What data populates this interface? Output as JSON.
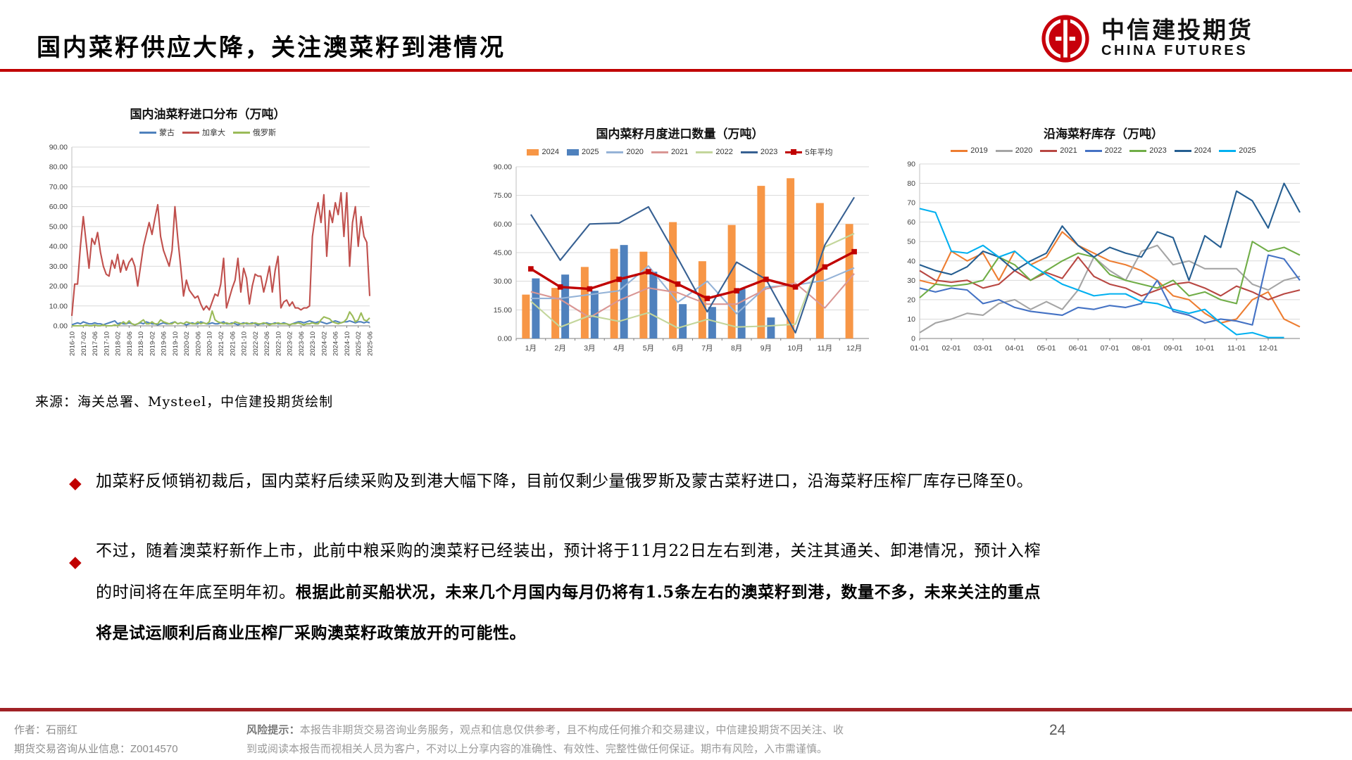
{
  "header": {
    "title": "国内菜籽供应大降，关注澳菜籽到港情况",
    "logo_cn": "中信建投期货",
    "logo_en": "CHINA FUTURES"
  },
  "ui": {
    "bullet_marker": "◆"
  },
  "source_note": "来源：海关总署、Mysteel，中信建投期货绘制",
  "bullets": [
    {
      "text": "加菜籽反倾销初裁后，国内菜籽后续采购及到港大幅下降，目前仅剩少量俄罗斯及蒙古菜籽进口，沿海菜籽压榨厂库存已降至0。"
    },
    {
      "text_normal": "不过，随着澳菜籽新作上市，此前中粮采购的澳菜籽已经装出，预计将于11月22日左右到港，关注其通关、卸港情况，预计入榨的时间将在年底至明年初。",
      "text_bold": "根据此前买船状况，未来几个月国内每月仍将有1.5条左右的澳菜籽到港，数量不多，未来关注的重点将是试运顺利后商业压榨厂采购澳菜籽政策放开的可能性。"
    }
  ],
  "footer": {
    "author_line": "作者：石丽红",
    "license_line": "期货交易咨询从业信息：Z0014570",
    "risk_label": "风险提示：",
    "risk_text": "本报告非期货交易咨询业务服务，观点和信息仅供参考，且不构成任何推介和交易建议，中信建投期货不因关注、收到或阅读本报告而视相关人员为客户，不对以上分享内容的准确性、有效性、完整性做任何保证。期市有风险，入市需谨慎。",
    "page_number": "24"
  },
  "chart_data": [
    {
      "type": "line",
      "title": "国内油菜籽进口分布（万吨）",
      "ylim": [
        0,
        90
      ],
      "ystep": 10,
      "y_decimals": 2,
      "grid": true,
      "legend_position": "top",
      "x_label_rotate": true,
      "tick_every": 4,
      "x_tick_labels": [
        "2016-10",
        "2017-02",
        "2017-06",
        "2017-10",
        "2018-02",
        "2018-06",
        "2018-10",
        "2019-02",
        "2019-06",
        "2019-10",
        "2020-02",
        "2020-06",
        "2020-10",
        "2021-02",
        "2021-06",
        "2021-10",
        "2022-02",
        "2022-06",
        "2022-10",
        "2023-02",
        "2023-06",
        "2023-10",
        "2024-02",
        "2024-06",
        "2024-10",
        "2025-02",
        "2025-06"
      ],
      "series": [
        {
          "name": "蒙古",
          "kind": "line",
          "color": "#4F81BD",
          "values": [
            0.5,
            1,
            1.5,
            1,
            2,
            1.5,
            1,
            1,
            1.5,
            1,
            1,
            0.5,
            1,
            1.5,
            2,
            2.5,
            1,
            1.5,
            1,
            1,
            1.5,
            1,
            0.5,
            1,
            1.5,
            1,
            2,
            1.5,
            1,
            1,
            0.5,
            1,
            1.5,
            1,
            1,
            1.5,
            2,
            1,
            1.5,
            1,
            0.5,
            1,
            1.5,
            1,
            1,
            2,
            1.5,
            1,
            1,
            1.5,
            1,
            1,
            1.5,
            2,
            1,
            1,
            1.5,
            1,
            0.5,
            1,
            1.5,
            1,
            1,
            1.5,
            1,
            0.5,
            1,
            1,
            1.5,
            1,
            1,
            1.5,
            1,
            1,
            1.5,
            1,
            0.5,
            1,
            1.5,
            2,
            2,
            1.5,
            2,
            2.5,
            2,
            1.5,
            2,
            2,
            1.5,
            1,
            1.5,
            2,
            2.5,
            2,
            1.5,
            2,
            2,
            2.5,
            2,
            1.5,
            2,
            2,
            1.5,
            2,
            1.5
          ]
        },
        {
          "name": "加拿大",
          "kind": "line",
          "color": "#C0504D",
          "values": [
            5,
            21,
            21,
            40,
            55,
            42,
            29,
            44,
            41,
            47,
            37,
            30,
            26,
            25,
            33,
            29,
            36,
            27,
            33,
            28,
            32,
            34,
            30,
            20,
            30,
            40,
            46,
            52,
            46,
            54,
            61,
            45,
            38,
            34,
            30,
            38,
            60,
            44,
            30,
            15,
            23,
            18,
            16,
            14,
            15,
            11,
            8,
            10,
            8,
            12,
            16,
            15,
            21,
            34,
            9,
            14,
            19,
            23,
            34,
            17,
            29,
            24,
            11,
            20,
            26,
            25,
            25,
            17,
            23,
            30,
            17,
            28,
            35,
            9,
            12,
            13,
            10,
            12,
            9,
            9,
            8,
            9,
            9,
            10,
            45,
            55,
            62,
            52,
            66,
            35,
            58,
            52,
            62,
            56,
            67,
            45,
            67,
            30,
            52,
            60,
            40,
            55,
            45,
            42,
            15
          ]
        },
        {
          "name": "俄罗斯",
          "kind": "line",
          "color": "#9BBB59",
          "values": [
            0,
            0,
            0,
            0,
            0,
            0.5,
            0,
            0,
            0.5,
            0,
            0,
            0.5,
            0,
            0,
            0,
            0.5,
            0,
            1,
            2,
            1,
            2.5,
            1,
            0.5,
            1,
            2,
            3,
            1,
            1,
            2,
            1,
            1,
            3,
            2,
            1.5,
            1,
            1,
            2,
            1,
            1.5,
            1,
            2,
            1.5,
            1,
            1,
            2,
            1,
            1.5,
            1,
            2,
            7.5,
            3,
            2,
            1.5,
            1,
            1.5,
            1,
            1,
            2,
            1.5,
            1,
            1,
            1.5,
            1,
            1,
            1.5,
            1,
            1,
            1.5,
            1,
            0.5,
            1,
            1,
            1.5,
            1,
            1,
            1,
            0.5,
            1,
            1,
            1.5,
            1,
            0.5,
            1,
            1,
            1.5,
            1,
            1,
            3,
            4.5,
            4,
            3.5,
            2,
            1.5,
            1,
            1.5,
            2,
            3.5,
            7,
            5,
            2,
            3,
            6.5,
            3,
            2.5,
            4
          ]
        }
      ]
    },
    {
      "type": "bar",
      "title": "国内菜籽月度进口数量（万吨）",
      "ylim": [
        0,
        90
      ],
      "ystep": 15,
      "y_decimals": 2,
      "grid": true,
      "legend_position": "top",
      "categories": [
        "1月",
        "2月",
        "3月",
        "4月",
        "5月",
        "6月",
        "7月",
        "8月",
        "9月",
        "10月",
        "11月",
        "12月"
      ],
      "series": [
        {
          "name": "2024",
          "kind": "bar",
          "color": "#F79646",
          "values": [
            23,
            26.5,
            37.5,
            47,
            45.5,
            61,
            40.5,
            59.5,
            80,
            84,
            71,
            60
          ]
        },
        {
          "name": "2025",
          "kind": "bar",
          "color": "#4F81BD",
          "values": [
            31.5,
            33.5,
            25,
            49,
            35,
            18,
            16.5,
            26,
            11,
            null,
            null,
            null
          ]
        },
        {
          "name": "2020",
          "kind": "line",
          "color": "#95B3D7",
          "values": [
            21,
            21,
            23,
            25,
            38,
            19,
            30,
            13,
            27,
            28,
            30.5,
            37
          ]
        },
        {
          "name": "2021",
          "kind": "line",
          "color": "#D99694",
          "values": [
            24.5,
            20.5,
            11,
            20,
            26.5,
            24,
            18,
            18,
            26,
            29,
            16,
            34
          ]
        },
        {
          "name": "2022",
          "kind": "line",
          "color": "#C3D69B",
          "values": [
            19.5,
            6,
            12,
            9,
            13.5,
            5.5,
            10,
            6,
            6.5,
            7.5,
            48,
            55
          ]
        },
        {
          "name": "2023",
          "kind": "line",
          "color": "#376092",
          "values": [
            65,
            41,
            60,
            60.5,
            69,
            42,
            14,
            40,
            31,
            3,
            49,
            74
          ]
        },
        {
          "name": "5年平均",
          "kind": "line",
          "color": "#C00000",
          "width": 3.4,
          "marker": "square",
          "values": [
            36.5,
            27,
            26,
            31,
            35,
            28.5,
            21,
            25,
            31,
            27,
            37.5,
            45.5
          ]
        }
      ]
    },
    {
      "type": "line",
      "title": "沿海菜籽库存（万吨）",
      "ylim": [
        0,
        90
      ],
      "ystep": 10,
      "y_decimals": 0,
      "grid": true,
      "legend_position": "top",
      "x_label_rotate": false,
      "tick_every": 2,
      "x_tick_labels": [
        "01-01",
        "02-01",
        "03-01",
        "04-01",
        "05-01",
        "06-01",
        "07-01",
        "08-01",
        "09-01",
        "10-01",
        "11-01",
        "12-01"
      ],
      "series": [
        {
          "name": "2019",
          "kind": "line",
          "color": "#ED7D31",
          "values": [
            30,
            28,
            45,
            40,
            44,
            30,
            45,
            38,
            42,
            55,
            48,
            44,
            40,
            38,
            35,
            30,
            22,
            20,
            13,
            8,
            10,
            20,
            24,
            10,
            6
          ]
        },
        {
          "name": "2020",
          "kind": "line",
          "color": "#A5A5A5",
          "values": [
            3,
            8,
            10,
            13,
            12,
            18,
            20,
            15,
            19,
            15,
            25,
            42,
            35,
            30,
            45,
            48,
            38,
            40,
            36,
            36,
            36,
            28,
            25,
            30,
            32
          ]
        },
        {
          "name": "2021",
          "kind": "line",
          "color": "#B84742",
          "values": [
            35,
            30,
            29,
            30,
            26,
            28,
            35,
            30,
            34,
            31,
            42,
            32,
            28,
            26,
            22,
            25,
            28,
            29,
            26,
            22,
            27,
            24,
            20,
            23,
            25
          ]
        },
        {
          "name": "2022",
          "kind": "line",
          "color": "#4472C4",
          "values": [
            26,
            24,
            26,
            25,
            18,
            20,
            16,
            14,
            13,
            12,
            16,
            15,
            17,
            16,
            18,
            30,
            14,
            12,
            8,
            10,
            9,
            7,
            43,
            41,
            30
          ]
        },
        {
          "name": "2023",
          "kind": "line",
          "color": "#70AD47",
          "values": [
            21,
            28,
            27,
            28,
            30,
            42,
            38,
            30,
            35,
            40,
            44,
            42,
            33,
            30,
            28,
            26,
            30,
            22,
            24,
            20,
            18,
            50,
            45,
            47,
            43
          ]
        },
        {
          "name": "2024",
          "kind": "line",
          "color": "#255E91",
          "values": [
            38,
            35,
            33,
            37,
            45,
            42,
            35,
            40,
            44,
            58,
            48,
            42,
            47,
            44,
            42,
            55,
            52,
            30,
            53,
            47,
            76,
            71,
            57,
            80,
            65
          ]
        },
        {
          "name": "2025",
          "kind": "line",
          "color": "#00B0F0",
          "values": [
            67,
            65,
            45,
            44,
            48,
            42,
            45,
            38,
            33,
            28,
            25,
            22,
            23,
            23,
            19,
            18,
            15,
            13,
            15,
            8,
            2,
            3,
            0.5,
            0.5,
            null
          ]
        }
      ]
    }
  ]
}
